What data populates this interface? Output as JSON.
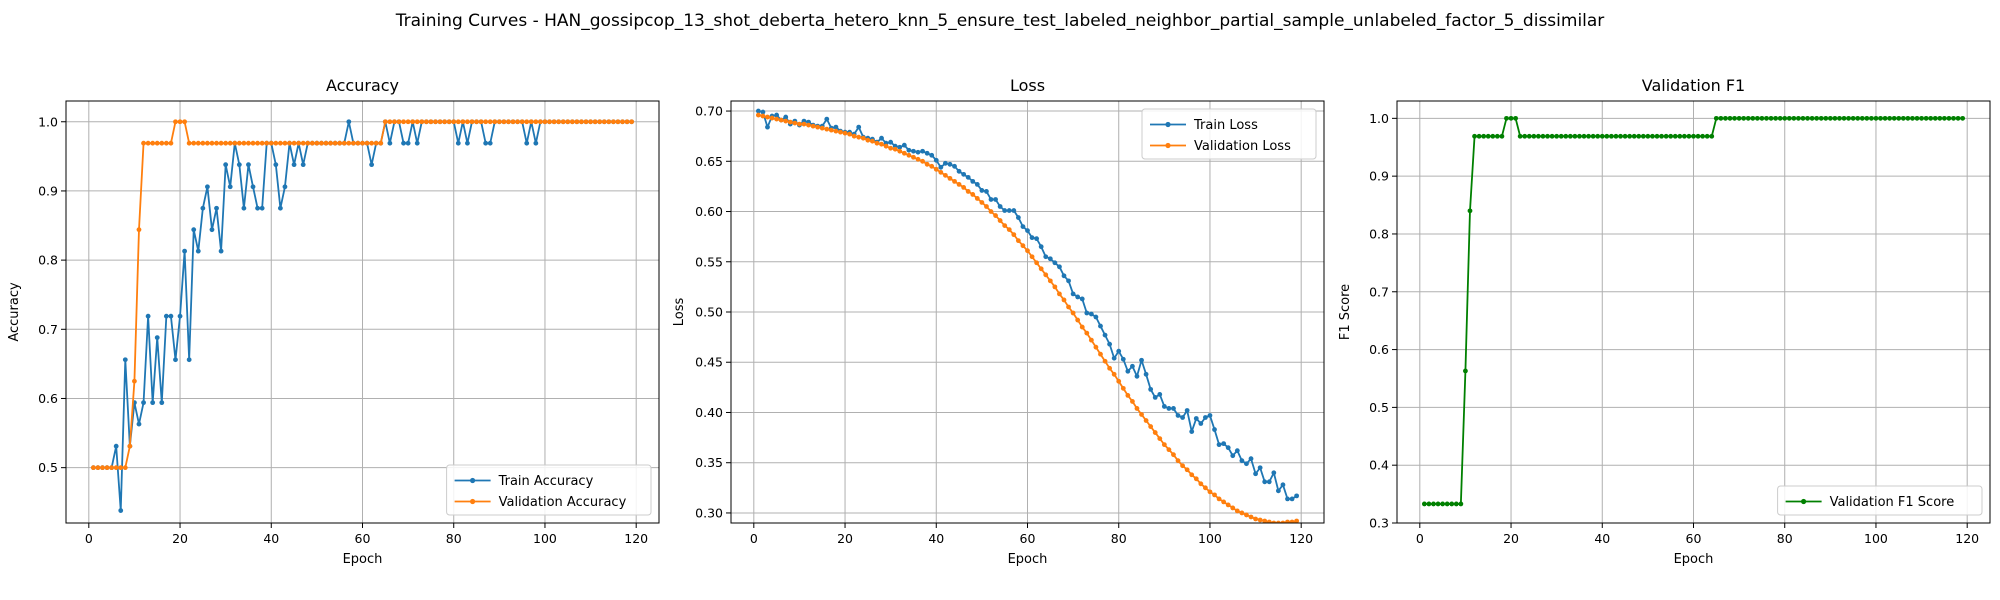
{
  "figure": {
    "suptitle": "Training Curves - HAN_gossipcop_13_shot_deberta_hetero_knn_5_ensure_test_labeled_neighbor_partial_sample_unlabeled_factor_5_dissimilar"
  },
  "chart_data": [
    {
      "id": "accuracy",
      "type": "line",
      "title": "Accuracy",
      "xlabel": "Epoch",
      "ylabel": "Accuracy",
      "xlim": [
        -5,
        125
      ],
      "ylim": [
        0.42,
        1.03
      ],
      "xticks": [
        0,
        20,
        40,
        60,
        80,
        100,
        120
      ],
      "yticks": [
        0.5,
        0.6,
        0.7,
        0.8,
        0.9,
        1.0
      ],
      "ytick_decimals": 1,
      "grid": true,
      "legend": "lower-right",
      "x": {
        "start": 1,
        "end": 119
      },
      "series": [
        {
          "name": "Train Accuracy",
          "color": "#1f77b4",
          "values": [
            0.5,
            0.5,
            0.5,
            0.5,
            0.5,
            0.531,
            0.438,
            0.656,
            0.531,
            0.594,
            0.563,
            0.594,
            0.719,
            0.594,
            0.688,
            0.594,
            0.719,
            0.719,
            0.656,
            0.719,
            0.813,
            0.656,
            0.844,
            0.813,
            0.875,
            0.906,
            0.844,
            0.875,
            0.813,
            0.938,
            0.906,
            0.969,
            0.938,
            0.875,
            0.938,
            0.906,
            0.875,
            0.875,
            0.969,
            0.969,
            0.938,
            0.875,
            0.906,
            0.969,
            0.938,
            0.969,
            0.938,
            0.969,
            0.969,
            0.969,
            0.969,
            0.969,
            0.969,
            0.969,
            0.969,
            0.969,
            1.0,
            0.969,
            0.969,
            0.969,
            0.969,
            0.938,
            0.969,
            0.969,
            1.0,
            0.969,
            1.0,
            1.0,
            0.969,
            0.969,
            1.0,
            0.969,
            1.0,
            1.0,
            1.0,
            1.0,
            1.0,
            1.0,
            1.0,
            1.0,
            0.969,
            1.0,
            0.969,
            1.0,
            1.0,
            1.0,
            0.969,
            0.969,
            1.0,
            1.0,
            1.0,
            1.0,
            1.0,
            1.0,
            1.0,
            0.969,
            1.0,
            0.969,
            1.0,
            1.0,
            1.0,
            1.0,
            1.0,
            1.0,
            1.0,
            1.0,
            1.0,
            1.0,
            1.0,
            1.0,
            1.0,
            1.0,
            1.0,
            1.0,
            1.0,
            1.0,
            1.0,
            1.0,
            1.0
          ]
        },
        {
          "name": "Validation Accuracy",
          "color": "#ff7f0e",
          "values": [
            0.5,
            0.5,
            0.5,
            0.5,
            0.5,
            0.5,
            0.5,
            0.5,
            0.531,
            0.625,
            0.844,
            0.969,
            0.969,
            0.969,
            0.969,
            0.969,
            0.969,
            0.969,
            1.0,
            1.0,
            1.0,
            0.969,
            0.969,
            0.969,
            0.969,
            0.969,
            0.969,
            0.969,
            0.969,
            0.969,
            0.969,
            0.969,
            0.969,
            0.969,
            0.969,
            0.969,
            0.969,
            0.969,
            0.969,
            0.969,
            0.969,
            0.969,
            0.969,
            0.969,
            0.969,
            0.969,
            0.969,
            0.969,
            0.969,
            0.969,
            0.969,
            0.969,
            0.969,
            0.969,
            0.969,
            0.969,
            0.969,
            0.969,
            0.969,
            0.969,
            0.969,
            0.969,
            0.969,
            0.969,
            1.0,
            1.0,
            1.0,
            1.0,
            1.0,
            1.0,
            1.0,
            1.0,
            1.0,
            1.0,
            1.0,
            1.0,
            1.0,
            1.0,
            1.0,
            1.0,
            1.0,
            1.0,
            1.0,
            1.0,
            1.0,
            1.0,
            1.0,
            1.0,
            1.0,
            1.0,
            1.0,
            1.0,
            1.0,
            1.0,
            1.0,
            1.0,
            1.0,
            1.0,
            1.0,
            1.0,
            1.0,
            1.0,
            1.0,
            1.0,
            1.0,
            1.0,
            1.0,
            1.0,
            1.0,
            1.0,
            1.0,
            1.0,
            1.0,
            1.0,
            1.0,
            1.0,
            1.0,
            1.0,
            1.0
          ]
        }
      ]
    },
    {
      "id": "loss",
      "type": "line",
      "title": "Loss",
      "xlabel": "Epoch",
      "ylabel": "Loss",
      "xlim": [
        -5,
        125
      ],
      "ylim": [
        0.29,
        0.71
      ],
      "xticks": [
        0,
        20,
        40,
        60,
        80,
        100,
        120
      ],
      "yticks": [
        0.3,
        0.35,
        0.4,
        0.45,
        0.5,
        0.55,
        0.6,
        0.65,
        0.7
      ],
      "ytick_decimals": 2,
      "grid": true,
      "legend": "upper-right",
      "x": {
        "start": 1,
        "end": 119
      },
      "series": [
        {
          "name": "Train Loss",
          "color": "#1f77b4",
          "values": [
            0.7,
            0.699,
            0.684,
            0.695,
            0.696,
            0.691,
            0.694,
            0.687,
            0.69,
            0.686,
            0.69,
            0.689,
            0.686,
            0.685,
            0.685,
            0.692,
            0.683,
            0.684,
            0.68,
            0.679,
            0.679,
            0.677,
            0.684,
            0.674,
            0.673,
            0.672,
            0.669,
            0.673,
            0.668,
            0.669,
            0.665,
            0.664,
            0.666,
            0.661,
            0.66,
            0.659,
            0.66,
            0.658,
            0.656,
            0.651,
            0.644,
            0.648,
            0.647,
            0.645,
            0.64,
            0.637,
            0.634,
            0.63,
            0.627,
            0.621,
            0.62,
            0.612,
            0.612,
            0.605,
            0.601,
            0.601,
            0.601,
            0.594,
            0.585,
            0.581,
            0.574,
            0.573,
            0.565,
            0.555,
            0.553,
            0.549,
            0.545,
            0.536,
            0.531,
            0.518,
            0.515,
            0.513,
            0.499,
            0.498,
            0.495,
            0.486,
            0.477,
            0.468,
            0.454,
            0.461,
            0.453,
            0.441,
            0.446,
            0.436,
            0.452,
            0.438,
            0.423,
            0.415,
            0.418,
            0.406,
            0.404,
            0.404,
            0.397,
            0.395,
            0.402,
            0.381,
            0.394,
            0.389,
            0.395,
            0.397,
            0.383,
            0.368,
            0.369,
            0.365,
            0.357,
            0.362,
            0.352,
            0.349,
            0.354,
            0.339,
            0.345,
            0.331,
            0.331,
            0.34,
            0.322,
            0.328,
            0.314,
            0.314,
            0.317
          ]
        },
        {
          "name": "Validation Loss",
          "color": "#ff7f0e",
          "values": [
            0.696,
            0.695,
            0.694,
            0.693,
            0.692,
            0.691,
            0.69,
            0.689,
            0.688,
            0.687,
            0.687,
            0.686,
            0.685,
            0.684,
            0.683,
            0.682,
            0.681,
            0.68,
            0.679,
            0.678,
            0.677,
            0.675,
            0.674,
            0.673,
            0.671,
            0.67,
            0.668,
            0.667,
            0.665,
            0.663,
            0.662,
            0.66,
            0.658,
            0.656,
            0.654,
            0.652,
            0.65,
            0.647,
            0.645,
            0.642,
            0.639,
            0.636,
            0.633,
            0.63,
            0.627,
            0.624,
            0.62,
            0.617,
            0.613,
            0.609,
            0.605,
            0.6,
            0.596,
            0.591,
            0.586,
            0.582,
            0.577,
            0.571,
            0.566,
            0.561,
            0.555,
            0.549,
            0.543,
            0.537,
            0.531,
            0.525,
            0.518,
            0.512,
            0.505,
            0.499,
            0.492,
            0.485,
            0.479,
            0.472,
            0.465,
            0.458,
            0.451,
            0.444,
            0.438,
            0.431,
            0.424,
            0.417,
            0.411,
            0.404,
            0.398,
            0.392,
            0.386,
            0.38,
            0.374,
            0.368,
            0.363,
            0.358,
            0.352,
            0.347,
            0.343,
            0.338,
            0.334,
            0.329,
            0.325,
            0.321,
            0.318,
            0.314,
            0.311,
            0.308,
            0.305,
            0.302,
            0.3,
            0.298,
            0.296,
            0.294,
            0.293,
            0.292,
            0.291,
            0.29,
            0.29,
            0.29,
            0.291,
            0.291,
            0.292
          ]
        }
      ]
    },
    {
      "id": "f1",
      "type": "line",
      "title": "Validation F1",
      "xlabel": "Epoch",
      "ylabel": "F1 Score",
      "xlim": [
        -5,
        125
      ],
      "ylim": [
        0.3,
        1.03
      ],
      "xticks": [
        0,
        20,
        40,
        60,
        80,
        100,
        120
      ],
      "yticks": [
        0.3,
        0.4,
        0.5,
        0.6,
        0.7,
        0.8,
        0.9,
        1.0
      ],
      "ytick_decimals": 1,
      "grid": true,
      "legend": "lower-right",
      "x": {
        "start": 1,
        "end": 119
      },
      "series": [
        {
          "name": "Validation F1 Score",
          "color": "#008000",
          "values": [
            0.333,
            0.333,
            0.333,
            0.333,
            0.333,
            0.333,
            0.333,
            0.333,
            0.333,
            0.563,
            0.84,
            0.969,
            0.969,
            0.969,
            0.969,
            0.969,
            0.969,
            0.969,
            1.0,
            1.0,
            1.0,
            0.969,
            0.969,
            0.969,
            0.969,
            0.969,
            0.969,
            0.969,
            0.969,
            0.969,
            0.969,
            0.969,
            0.969,
            0.969,
            0.969,
            0.969,
            0.969,
            0.969,
            0.969,
            0.969,
            0.969,
            0.969,
            0.969,
            0.969,
            0.969,
            0.969,
            0.969,
            0.969,
            0.969,
            0.969,
            0.969,
            0.969,
            0.969,
            0.969,
            0.969,
            0.969,
            0.969,
            0.969,
            0.969,
            0.969,
            0.969,
            0.969,
            0.969,
            0.969,
            1.0,
            1.0,
            1.0,
            1.0,
            1.0,
            1.0,
            1.0,
            1.0,
            1.0,
            1.0,
            1.0,
            1.0,
            1.0,
            1.0,
            1.0,
            1.0,
            1.0,
            1.0,
            1.0,
            1.0,
            1.0,
            1.0,
            1.0,
            1.0,
            1.0,
            1.0,
            1.0,
            1.0,
            1.0,
            1.0,
            1.0,
            1.0,
            1.0,
            1.0,
            1.0,
            1.0,
            1.0,
            1.0,
            1.0,
            1.0,
            1.0,
            1.0,
            1.0,
            1.0,
            1.0,
            1.0,
            1.0,
            1.0,
            1.0,
            1.0,
            1.0,
            1.0,
            1.0,
            1.0,
            1.0
          ]
        }
      ]
    }
  ]
}
